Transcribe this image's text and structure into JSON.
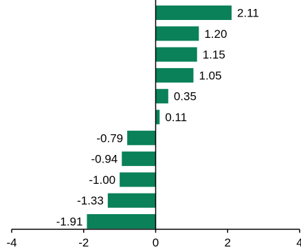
{
  "chart_data": {
    "type": "bar",
    "orientation": "horizontal",
    "values": [
      2.11,
      1.2,
      1.15,
      1.05,
      0.35,
      0.11,
      -0.79,
      -0.94,
      -1.0,
      -1.33,
      -1.91
    ],
    "data_labels": [
      "2.11",
      "1.20",
      "1.15",
      "1.05",
      "0.35",
      "0.11",
      "-0.79",
      "-0.94",
      "-1.00",
      "-1.33",
      "-1.91"
    ],
    "xlim": [
      -4,
      4
    ],
    "x_ticks": [
      -4,
      -2,
      0,
      2,
      4
    ],
    "x_tick_labels": [
      "-4",
      "-2",
      "0",
      "2",
      "4"
    ],
    "title": "",
    "xlabel": "",
    "ylabel": "",
    "grid": false,
    "legend": "none",
    "bar_color": "#0a8158",
    "axis_color": "#000000"
  }
}
